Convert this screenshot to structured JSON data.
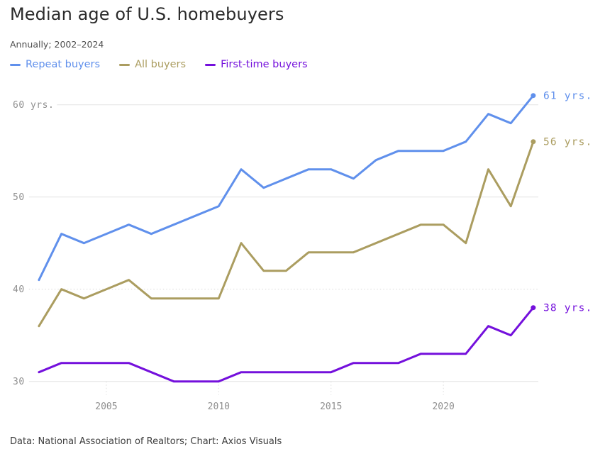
{
  "header": {
    "title": "Median age of U.S. homebuyers",
    "subtitle": "Annually; 2002–2024"
  },
  "legend": [
    {
      "label": "Repeat buyers",
      "color": "#6090ec"
    },
    {
      "label": "All buyers",
      "color": "#ab9d60"
    },
    {
      "label": "First-time buyers",
      "color": "#7410dc"
    }
  ],
  "chart_data": {
    "type": "line",
    "title": "Median age of U.S. homebuyers",
    "subtitle": "Annually; 2002–2024",
    "xlabel": "",
    "ylabel": "yrs.",
    "x": [
      2002,
      2003,
      2004,
      2005,
      2006,
      2007,
      2008,
      2009,
      2010,
      2011,
      2012,
      2013,
      2014,
      2015,
      2016,
      2017,
      2018,
      2019,
      2020,
      2021,
      2022,
      2023,
      2024
    ],
    "series": [
      {
        "name": "Repeat buyers",
        "color": "#6090ec",
        "values": [
          41,
          46,
          45,
          46,
          47,
          46,
          47,
          48,
          49,
          53,
          51,
          52,
          53,
          53,
          52,
          54,
          55,
          55,
          55,
          56,
          59,
          58,
          61
        ],
        "end_label": "61 yrs."
      },
      {
        "name": "All buyers",
        "color": "#ab9d60",
        "values": [
          36,
          40,
          39,
          40,
          41,
          39,
          39,
          39,
          39,
          45,
          42,
          42,
          44,
          44,
          44,
          45,
          46,
          47,
          47,
          45,
          53,
          49,
          56
        ],
        "end_label": "56 yrs."
      },
      {
        "name": "First-time buyers",
        "color": "#7410dc",
        "values": [
          31,
          32,
          32,
          32,
          32,
          31,
          30,
          30,
          30,
          31,
          31,
          31,
          31,
          31,
          32,
          32,
          32,
          33,
          33,
          33,
          36,
          35,
          38
        ],
        "end_label": "38 yrs."
      }
    ],
    "axes": {
      "yticks": [
        {
          "value": 60,
          "label": "60 yrs.",
          "style": "solid"
        },
        {
          "value": 50,
          "label": "50",
          "style": "solid"
        },
        {
          "value": 40,
          "label": "40",
          "style": "dotted"
        },
        {
          "value": 30,
          "label": "30",
          "style": "solid"
        }
      ],
      "xticks": [
        2005,
        2010,
        2015,
        2020
      ],
      "ylim": [
        30,
        61
      ],
      "xlim": [
        2002,
        2024
      ],
      "grid": true,
      "legend_position": "top"
    }
  },
  "footer": {
    "credit": "Data: National Association of Realtors; Chart: Axios Visuals"
  }
}
